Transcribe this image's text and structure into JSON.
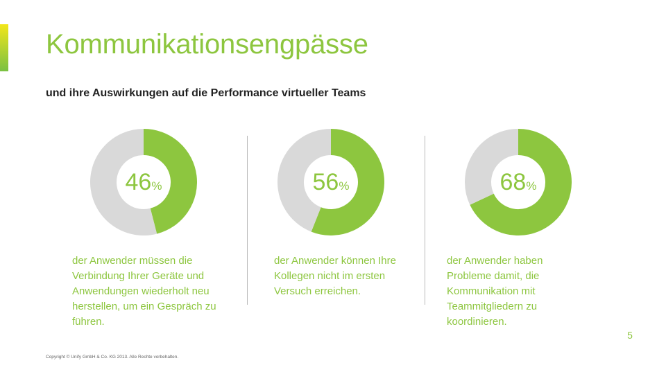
{
  "slide": {
    "title": "Kommunikationsengpässe",
    "subtitle": "und ihre Auswirkungen auf die Performance virtueller Teams",
    "copyright": "Copyright © Unify GmbH & Co. KG 2013.  Alle Rechte vorbehalten.",
    "page_number": "5"
  },
  "colors": {
    "accent": "#8dc63f",
    "remainder": "#d9d9d9",
    "text": "#222222"
  },
  "chart_data": [
    {
      "type": "pie",
      "values": [
        46,
        54
      ],
      "value_label": "46",
      "unit": "%",
      "annotation": "der Anwender müssen die Verbindung Ihrer Geräte und Anwendungen wiederholt neu herstellen, um ein Gespräch zu führen."
    },
    {
      "type": "pie",
      "values": [
        56,
        44
      ],
      "value_label": "56",
      "unit": "%",
      "annotation": "der Anwender können Ihre Kollegen nicht im ersten Versuch erreichen."
    },
    {
      "type": "pie",
      "values": [
        68,
        32
      ],
      "value_label": "68",
      "unit": "%",
      "annotation": "der Anwender haben Probleme damit, die Kommunikation mit Teammitgliedern zu koordinieren."
    }
  ]
}
